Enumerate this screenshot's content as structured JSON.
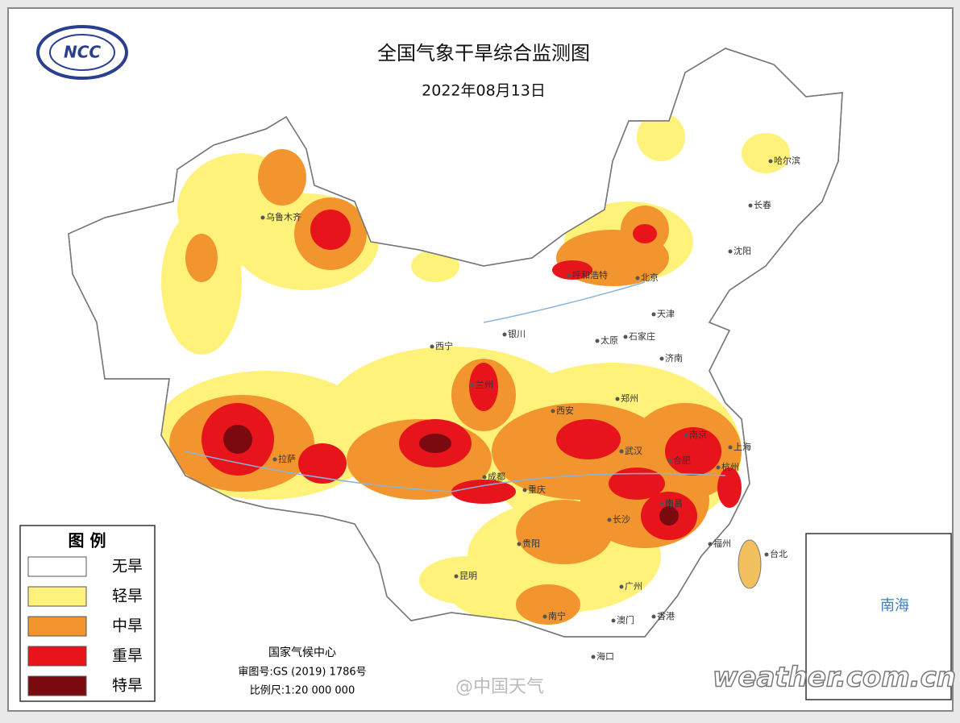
{
  "header": {
    "title": "全国气象干旱综合监测图",
    "date": "2022年08月13日",
    "logo": "NCC"
  },
  "legend": {
    "title": "图 例",
    "items": [
      {
        "label": "无旱",
        "color": "#ffffff"
      },
      {
        "label": "轻旱",
        "color": "#fff27a"
      },
      {
        "label": "中旱",
        "color": "#f2952e"
      },
      {
        "label": "重旱",
        "color": "#e8141c"
      },
      {
        "label": "特旱",
        "color": "#7a0a10"
      }
    ]
  },
  "cities": [
    {
      "label": "乌鲁木齐"
    },
    {
      "label": "哈尔滨"
    },
    {
      "label": "长春"
    },
    {
      "label": "沈阳"
    },
    {
      "label": "呼和浩特"
    },
    {
      "label": "北京"
    },
    {
      "label": "天津"
    },
    {
      "label": "银川"
    },
    {
      "label": "太原"
    },
    {
      "label": "石家庄"
    },
    {
      "label": "济南"
    },
    {
      "label": "西宁"
    },
    {
      "label": "兰州"
    },
    {
      "label": "郑州"
    },
    {
      "label": "西安"
    },
    {
      "label": "拉萨"
    },
    {
      "label": "成都"
    },
    {
      "label": "重庆"
    },
    {
      "label": "武汉"
    },
    {
      "label": "南京"
    },
    {
      "label": "合肥"
    },
    {
      "label": "上海"
    },
    {
      "label": "杭州"
    },
    {
      "label": "长沙"
    },
    {
      "label": "南昌"
    },
    {
      "label": "福州"
    },
    {
      "label": "贵阳"
    },
    {
      "label": "昆明"
    },
    {
      "label": "南宁"
    },
    {
      "label": "广州"
    },
    {
      "label": "澳门"
    },
    {
      "label": "香港"
    },
    {
      "label": "台北"
    },
    {
      "label": "海口"
    }
  ],
  "footer": {
    "agency": "国家气候中心",
    "approval": "审图号:GS (2019) 1786号",
    "scale": "比例尺:1:20 000 000"
  },
  "inset": {
    "label": "南海"
  },
  "watermarks": [
    "@中国天气",
    "weather.com.cn"
  ]
}
